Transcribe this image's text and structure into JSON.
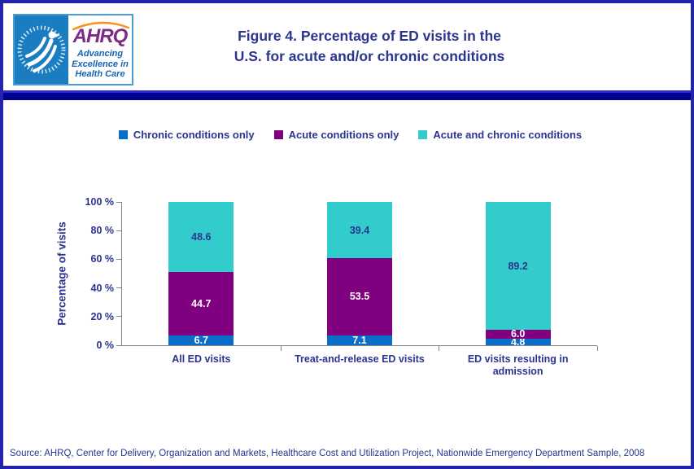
{
  "header": {
    "title_line1": "Figure 4. Percentage of ED visits in the",
    "title_line2": "U.S. for acute and/or chronic conditions",
    "logo": {
      "org_acronym": "AHRQ",
      "tagline_line1": "Advancing",
      "tagline_line2": "Excellence in",
      "tagline_line3": "Health Care",
      "hhs_blue": "#1A7CC1",
      "ahrq_purple": "#7C2B87",
      "tagline_blue": "#1464B4",
      "arc_orange": "#F7941D"
    }
  },
  "chart_data": {
    "type": "bar",
    "stacked": true,
    "title": "Figure 4. Percentage of ED visits in the U.S. for acute and/or chronic conditions",
    "ylabel": "Percentage of visits",
    "xlabel": "",
    "ylim": [
      0,
      100
    ],
    "yticks": [
      0,
      20,
      40,
      60,
      80,
      100
    ],
    "ytick_labels": [
      "0 %",
      "20 %",
      "40 %",
      "60 %",
      "80 %",
      "100 %"
    ],
    "grid": false,
    "legend_position": "top",
    "categories": [
      "All ED visits",
      "Treat-and-release ED visits",
      "ED visits resulting in admission"
    ],
    "series": [
      {
        "name": "Chronic conditions only",
        "color": "#0A6EC8",
        "label_color": "#FFFFFF",
        "values": [
          6.7,
          7.1,
          4.8
        ],
        "labels": [
          "6.7",
          "7.1",
          "4.8"
        ]
      },
      {
        "name": "Acute conditions only",
        "color": "#800080",
        "label_color": "#FFFFFF",
        "values": [
          44.7,
          53.5,
          6.0
        ],
        "labels": [
          "44.7",
          "53.5",
          "6.0"
        ]
      },
      {
        "name": "Acute and chronic conditions",
        "color": "#33CCCC",
        "label_color": "#2B3490",
        "values": [
          48.6,
          39.4,
          89.2
        ],
        "labels": [
          "48.6",
          "39.4",
          "89.2"
        ]
      }
    ],
    "axis_color": "#848284",
    "text_color": "#2B3490"
  },
  "source": "Source: AHRQ, Center for Delivery, Organization and Markets, Healthcare Cost and Utilization Project, Nationwide Emergency Department Sample, 2008"
}
